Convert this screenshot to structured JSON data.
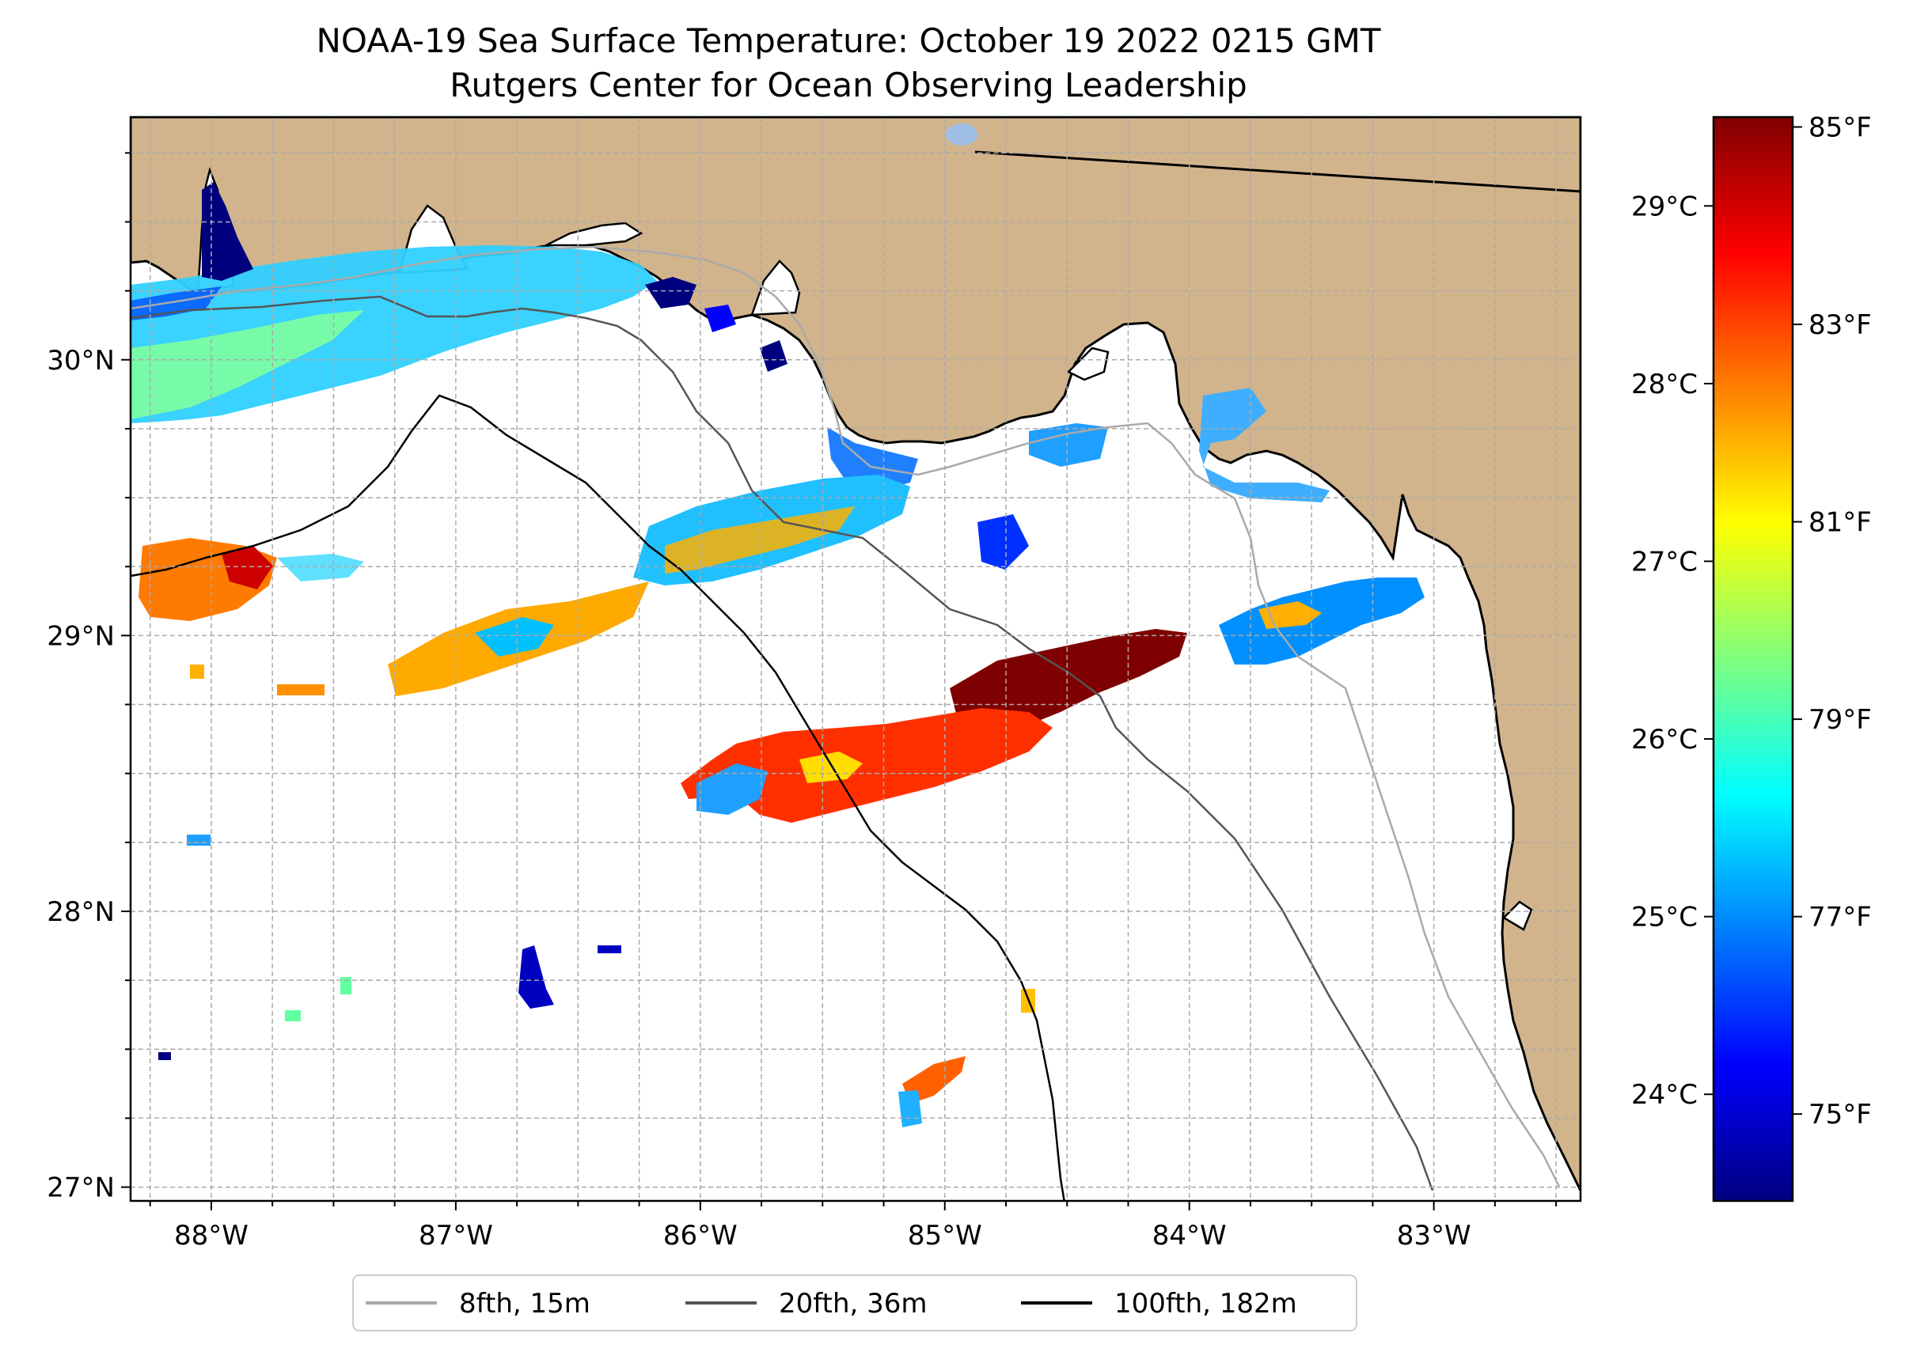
{
  "title": {
    "line1": "NOAA-19 Sea Surface Temperature: October 19 2022 0215 GMT",
    "line2": "Rutgers Center for Ocean Observing Leadership"
  },
  "map": {
    "lon_range": [
      -88.33,
      -82.4
    ],
    "lat_range": [
      26.95,
      30.88
    ],
    "x_ticks": [
      {
        "value": -88,
        "label": "88°W"
      },
      {
        "value": -87,
        "label": "87°W"
      },
      {
        "value": -86,
        "label": "86°W"
      },
      {
        "value": -85,
        "label": "85°W"
      },
      {
        "value": -84,
        "label": "84°W"
      },
      {
        "value": -83,
        "label": "83°W"
      }
    ],
    "y_ticks": [
      {
        "value": 27,
        "label": "27°N"
      },
      {
        "value": 28,
        "label": "28°N"
      },
      {
        "value": 29,
        "label": "29°N"
      },
      {
        "value": 30,
        "label": "30°N"
      }
    ],
    "land_color": "#d2b48c",
    "water_color": "#ffffff",
    "gridline_color": "#aaaaaa"
  },
  "colorbar": {
    "celsius_range": [
      23.4,
      29.5
    ],
    "celsius_ticks": [
      {
        "value": 24,
        "label": "24°C"
      },
      {
        "value": 25,
        "label": "25°C"
      },
      {
        "value": 26,
        "label": "26°C"
      },
      {
        "value": 27,
        "label": "27°C"
      },
      {
        "value": 28,
        "label": "28°C"
      },
      {
        "value": 29,
        "label": "29°C"
      }
    ],
    "fahrenheit_ticks": [
      {
        "value": 75,
        "label": "75°F"
      },
      {
        "value": 77,
        "label": "77°F"
      },
      {
        "value": 79,
        "label": "79°F"
      },
      {
        "value": 81,
        "label": "81°F"
      },
      {
        "value": 83,
        "label": "83°F"
      },
      {
        "value": 85,
        "label": "85°F"
      }
    ],
    "colors": [
      "#00007f",
      "#0000ff",
      "#007fff",
      "#00ffff",
      "#7fff7f",
      "#ffff00",
      "#ff7f00",
      "#ff0000",
      "#7f0000"
    ]
  },
  "legend": {
    "items": [
      {
        "label": "8fth, 15m",
        "color": "#aaaaaa"
      },
      {
        "label": "20fth, 36m",
        "color": "#555555"
      },
      {
        "label": "100fth, 182m",
        "color": "#000000"
      }
    ]
  }
}
